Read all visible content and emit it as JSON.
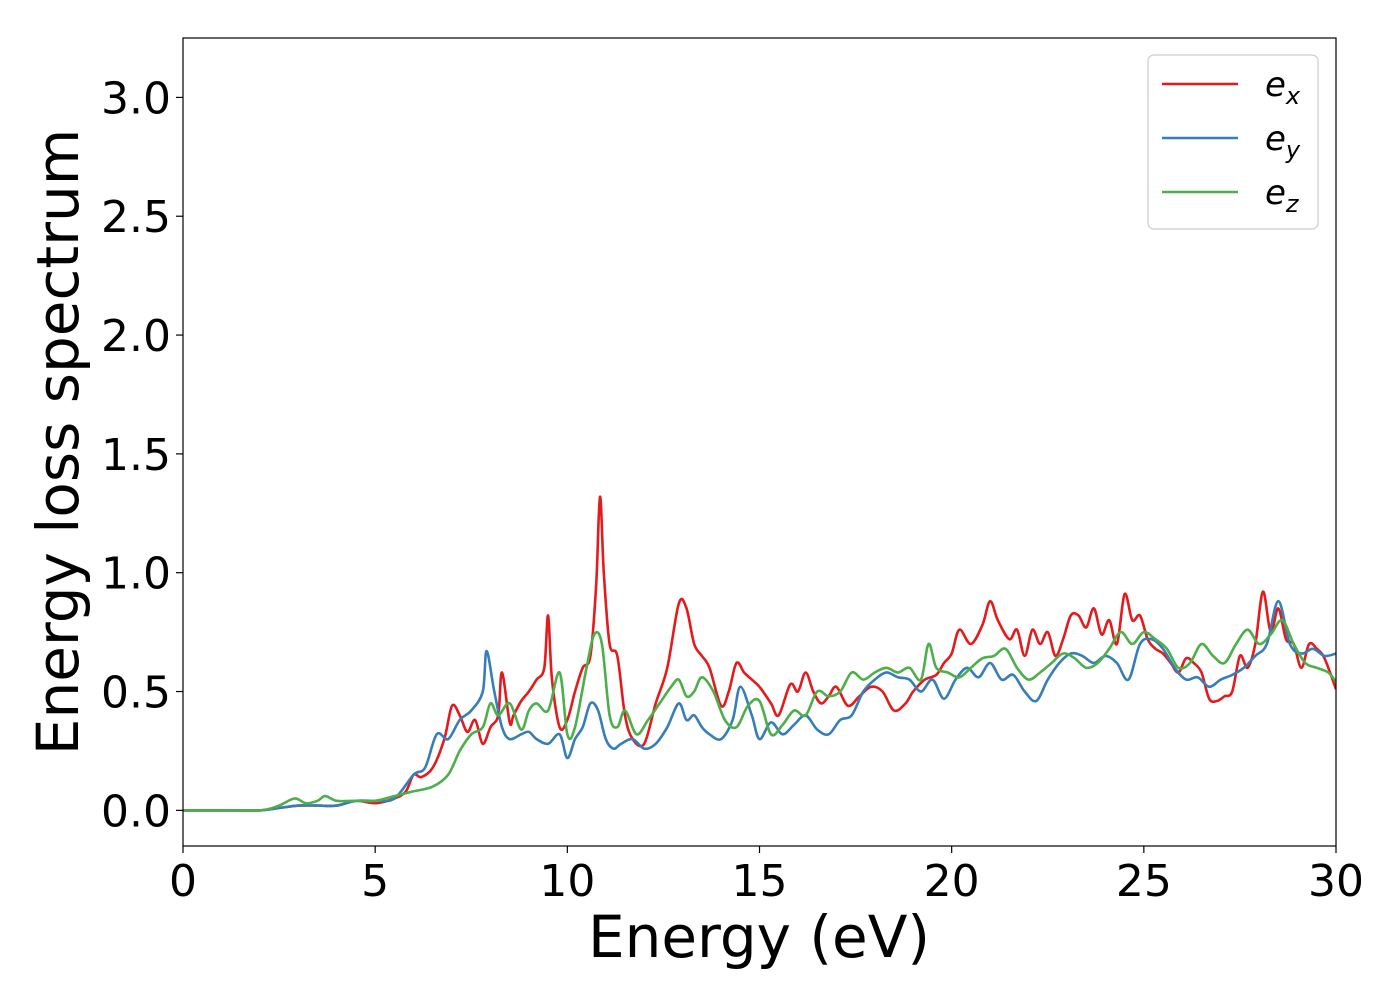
{
  "chart_data": {
    "type": "line",
    "title": "",
    "xlabel": "Energy (eV)",
    "ylabel": "Energy loss spectrum",
    "xlim": [
      0,
      30
    ],
    "ylim": [
      -0.15,
      3.25
    ],
    "xticks": [
      0,
      5,
      10,
      15,
      20,
      25,
      30
    ],
    "xtick_labels": [
      "0",
      "5",
      "10",
      "15",
      "20",
      "25",
      "30"
    ],
    "yticks": [
      0.0,
      0.5,
      1.0,
      1.5,
      2.0,
      2.5,
      3.0
    ],
    "ytick_labels": [
      "0.0",
      "0.5",
      "1.0",
      "1.5",
      "2.0",
      "2.5",
      "3.0"
    ],
    "grid": false,
    "legend_position": "top-right",
    "series": [
      {
        "name": "e",
        "subscript": "x",
        "color": "#e41a1c",
        "x": [
          0,
          1,
          2,
          2.5,
          3,
          3.5,
          4,
          4.5,
          5,
          5.5,
          5.8,
          6.0,
          6.2,
          6.5,
          6.8,
          7.0,
          7.2,
          7.4,
          7.6,
          7.8,
          8.0,
          8.2,
          8.3,
          8.5,
          8.6,
          8.8,
          9.0,
          9.2,
          9.4,
          9.5,
          9.6,
          9.8,
          10.0,
          10.2,
          10.4,
          10.6,
          10.75,
          10.85,
          10.95,
          11.1,
          11.3,
          11.5,
          11.7,
          12.0,
          12.3,
          12.6,
          12.9,
          13.1,
          13.3,
          13.5,
          13.7,
          14.0,
          14.2,
          14.4,
          14.6,
          14.8,
          15.0,
          15.3,
          15.5,
          15.8,
          16.0,
          16.2,
          16.4,
          16.6,
          16.8,
          17.0,
          17.3,
          17.6,
          17.9,
          18.2,
          18.5,
          18.8,
          19.0,
          19.3,
          19.6,
          19.8,
          20.0,
          20.2,
          20.5,
          20.8,
          21.0,
          21.2,
          21.5,
          21.7,
          21.9,
          22.1,
          22.3,
          22.5,
          22.7,
          22.9,
          23.1,
          23.3,
          23.5,
          23.7,
          23.9,
          24.1,
          24.3,
          24.5,
          24.7,
          24.9,
          25.1,
          25.3,
          25.5,
          25.7,
          25.9,
          26.1,
          26.3,
          26.5,
          26.7,
          26.9,
          27.1,
          27.3,
          27.5,
          27.7,
          27.9,
          28.1,
          28.3,
          28.5,
          28.7,
          28.9,
          29.1,
          29.3,
          29.5,
          29.7,
          30
        ],
        "y": [
          0.0,
          0.0,
          0.0,
          0.01,
          0.02,
          0.02,
          0.02,
          0.04,
          0.03,
          0.05,
          0.08,
          0.15,
          0.14,
          0.18,
          0.3,
          0.44,
          0.4,
          0.33,
          0.38,
          0.28,
          0.35,
          0.4,
          0.58,
          0.37,
          0.4,
          0.46,
          0.5,
          0.55,
          0.6,
          0.82,
          0.55,
          0.35,
          0.38,
          0.5,
          0.6,
          0.65,
          0.95,
          1.32,
          1.0,
          0.7,
          0.65,
          0.4,
          0.3,
          0.28,
          0.45,
          0.6,
          0.87,
          0.85,
          0.7,
          0.65,
          0.6,
          0.44,
          0.5,
          0.62,
          0.58,
          0.55,
          0.52,
          0.45,
          0.4,
          0.53,
          0.5,
          0.58,
          0.5,
          0.45,
          0.48,
          0.52,
          0.44,
          0.48,
          0.52,
          0.5,
          0.42,
          0.45,
          0.5,
          0.55,
          0.57,
          0.62,
          0.66,
          0.76,
          0.7,
          0.78,
          0.88,
          0.8,
          0.72,
          0.76,
          0.65,
          0.76,
          0.7,
          0.75,
          0.65,
          0.72,
          0.82,
          0.82,
          0.77,
          0.85,
          0.74,
          0.8,
          0.7,
          0.91,
          0.8,
          0.82,
          0.72,
          0.68,
          0.66,
          0.62,
          0.58,
          0.64,
          0.62,
          0.58,
          0.47,
          0.46,
          0.48,
          0.5,
          0.65,
          0.6,
          0.7,
          0.92,
          0.75,
          0.85,
          0.72,
          0.7,
          0.6,
          0.7,
          0.68,
          0.64,
          0.51
        ]
      },
      {
        "name": "e",
        "subscript": "y",
        "color": "#377eb8",
        "x": [
          0,
          1,
          2,
          2.5,
          3,
          3.5,
          4,
          4.5,
          5,
          5.5,
          6.0,
          6.3,
          6.6,
          6.9,
          7.2,
          7.5,
          7.8,
          7.9,
          8.1,
          8.3,
          8.5,
          8.8,
          9.0,
          9.2,
          9.5,
          9.8,
          10.0,
          10.2,
          10.4,
          10.6,
          10.8,
          11.0,
          11.2,
          11.4,
          11.7,
          12.0,
          12.3,
          12.6,
          12.9,
          13.1,
          13.3,
          13.5,
          13.7,
          14.0,
          14.3,
          14.5,
          14.8,
          15.0,
          15.3,
          15.6,
          15.9,
          16.2,
          16.5,
          16.8,
          17.1,
          17.4,
          17.7,
          18.0,
          18.3,
          18.6,
          18.9,
          19.2,
          19.5,
          19.8,
          20.1,
          20.4,
          20.7,
          21.0,
          21.3,
          21.6,
          21.9,
          22.2,
          22.5,
          22.8,
          23.1,
          23.4,
          23.7,
          24.0,
          24.3,
          24.6,
          24.9,
          25.2,
          25.5,
          25.8,
          26.1,
          26.4,
          26.7,
          27.0,
          27.3,
          27.6,
          27.9,
          28.2,
          28.5,
          28.8,
          29.1,
          29.4,
          29.7,
          30
        ],
        "y": [
          0.0,
          0.0,
          0.0,
          0.01,
          0.02,
          0.02,
          0.02,
          0.04,
          0.04,
          0.05,
          0.15,
          0.18,
          0.32,
          0.3,
          0.38,
          0.42,
          0.5,
          0.67,
          0.5,
          0.35,
          0.3,
          0.32,
          0.33,
          0.3,
          0.28,
          0.32,
          0.22,
          0.3,
          0.35,
          0.45,
          0.42,
          0.3,
          0.26,
          0.28,
          0.3,
          0.26,
          0.28,
          0.35,
          0.45,
          0.38,
          0.4,
          0.35,
          0.32,
          0.3,
          0.38,
          0.52,
          0.4,
          0.3,
          0.37,
          0.32,
          0.36,
          0.4,
          0.34,
          0.32,
          0.38,
          0.4,
          0.5,
          0.55,
          0.58,
          0.56,
          0.55,
          0.5,
          0.55,
          0.47,
          0.55,
          0.6,
          0.56,
          0.62,
          0.55,
          0.57,
          0.5,
          0.46,
          0.55,
          0.62,
          0.66,
          0.65,
          0.62,
          0.65,
          0.62,
          0.55,
          0.7,
          0.72,
          0.68,
          0.6,
          0.55,
          0.56,
          0.52,
          0.55,
          0.57,
          0.6,
          0.65,
          0.7,
          0.88,
          0.7,
          0.66,
          0.68,
          0.65,
          0.66
        ]
      },
      {
        "name": "e",
        "subscript": "z",
        "color": "#4daf4a",
        "x": [
          0,
          1,
          2,
          2.5,
          2.9,
          3.2,
          3.5,
          3.7,
          4.0,
          4.5,
          5.0,
          5.5,
          6.0,
          6.5,
          6.9,
          7.2,
          7.5,
          7.8,
          8.0,
          8.2,
          8.5,
          8.8,
          9.0,
          9.2,
          9.5,
          9.8,
          10.0,
          10.2,
          10.5,
          10.7,
          10.9,
          11.1,
          11.3,
          11.5,
          11.8,
          12.1,
          12.4,
          12.7,
          12.9,
          13.1,
          13.3,
          13.5,
          13.8,
          14.1,
          14.4,
          14.7,
          15.0,
          15.3,
          15.6,
          15.9,
          16.2,
          16.5,
          16.8,
          17.1,
          17.4,
          17.7,
          18.0,
          18.3,
          18.6,
          18.9,
          19.2,
          19.4,
          19.6,
          19.9,
          20.2,
          20.5,
          20.8,
          21.1,
          21.4,
          21.7,
          22.0,
          22.3,
          22.6,
          22.9,
          23.2,
          23.5,
          23.8,
          24.1,
          24.4,
          24.7,
          25.0,
          25.3,
          25.6,
          25.9,
          26.2,
          26.5,
          26.8,
          27.1,
          27.4,
          27.7,
          28.0,
          28.3,
          28.6,
          28.9,
          29.2,
          29.5,
          29.8,
          30
        ],
        "y": [
          0.0,
          0.0,
          0.0,
          0.02,
          0.05,
          0.03,
          0.04,
          0.06,
          0.04,
          0.04,
          0.04,
          0.06,
          0.08,
          0.1,
          0.15,
          0.25,
          0.32,
          0.35,
          0.45,
          0.4,
          0.45,
          0.34,
          0.42,
          0.45,
          0.42,
          0.58,
          0.32,
          0.35,
          0.6,
          0.74,
          0.7,
          0.4,
          0.35,
          0.42,
          0.32,
          0.38,
          0.45,
          0.52,
          0.55,
          0.48,
          0.5,
          0.56,
          0.5,
          0.38,
          0.35,
          0.44,
          0.46,
          0.32,
          0.36,
          0.42,
          0.4,
          0.5,
          0.48,
          0.5,
          0.58,
          0.55,
          0.58,
          0.6,
          0.58,
          0.6,
          0.55,
          0.7,
          0.6,
          0.58,
          0.56,
          0.6,
          0.64,
          0.65,
          0.68,
          0.6,
          0.55,
          0.58,
          0.62,
          0.66,
          0.64,
          0.6,
          0.62,
          0.68,
          0.75,
          0.7,
          0.75,
          0.72,
          0.68,
          0.6,
          0.62,
          0.7,
          0.65,
          0.62,
          0.7,
          0.76,
          0.7,
          0.74,
          0.8,
          0.7,
          0.62,
          0.6,
          0.58,
          0.54
        ]
      }
    ]
  }
}
